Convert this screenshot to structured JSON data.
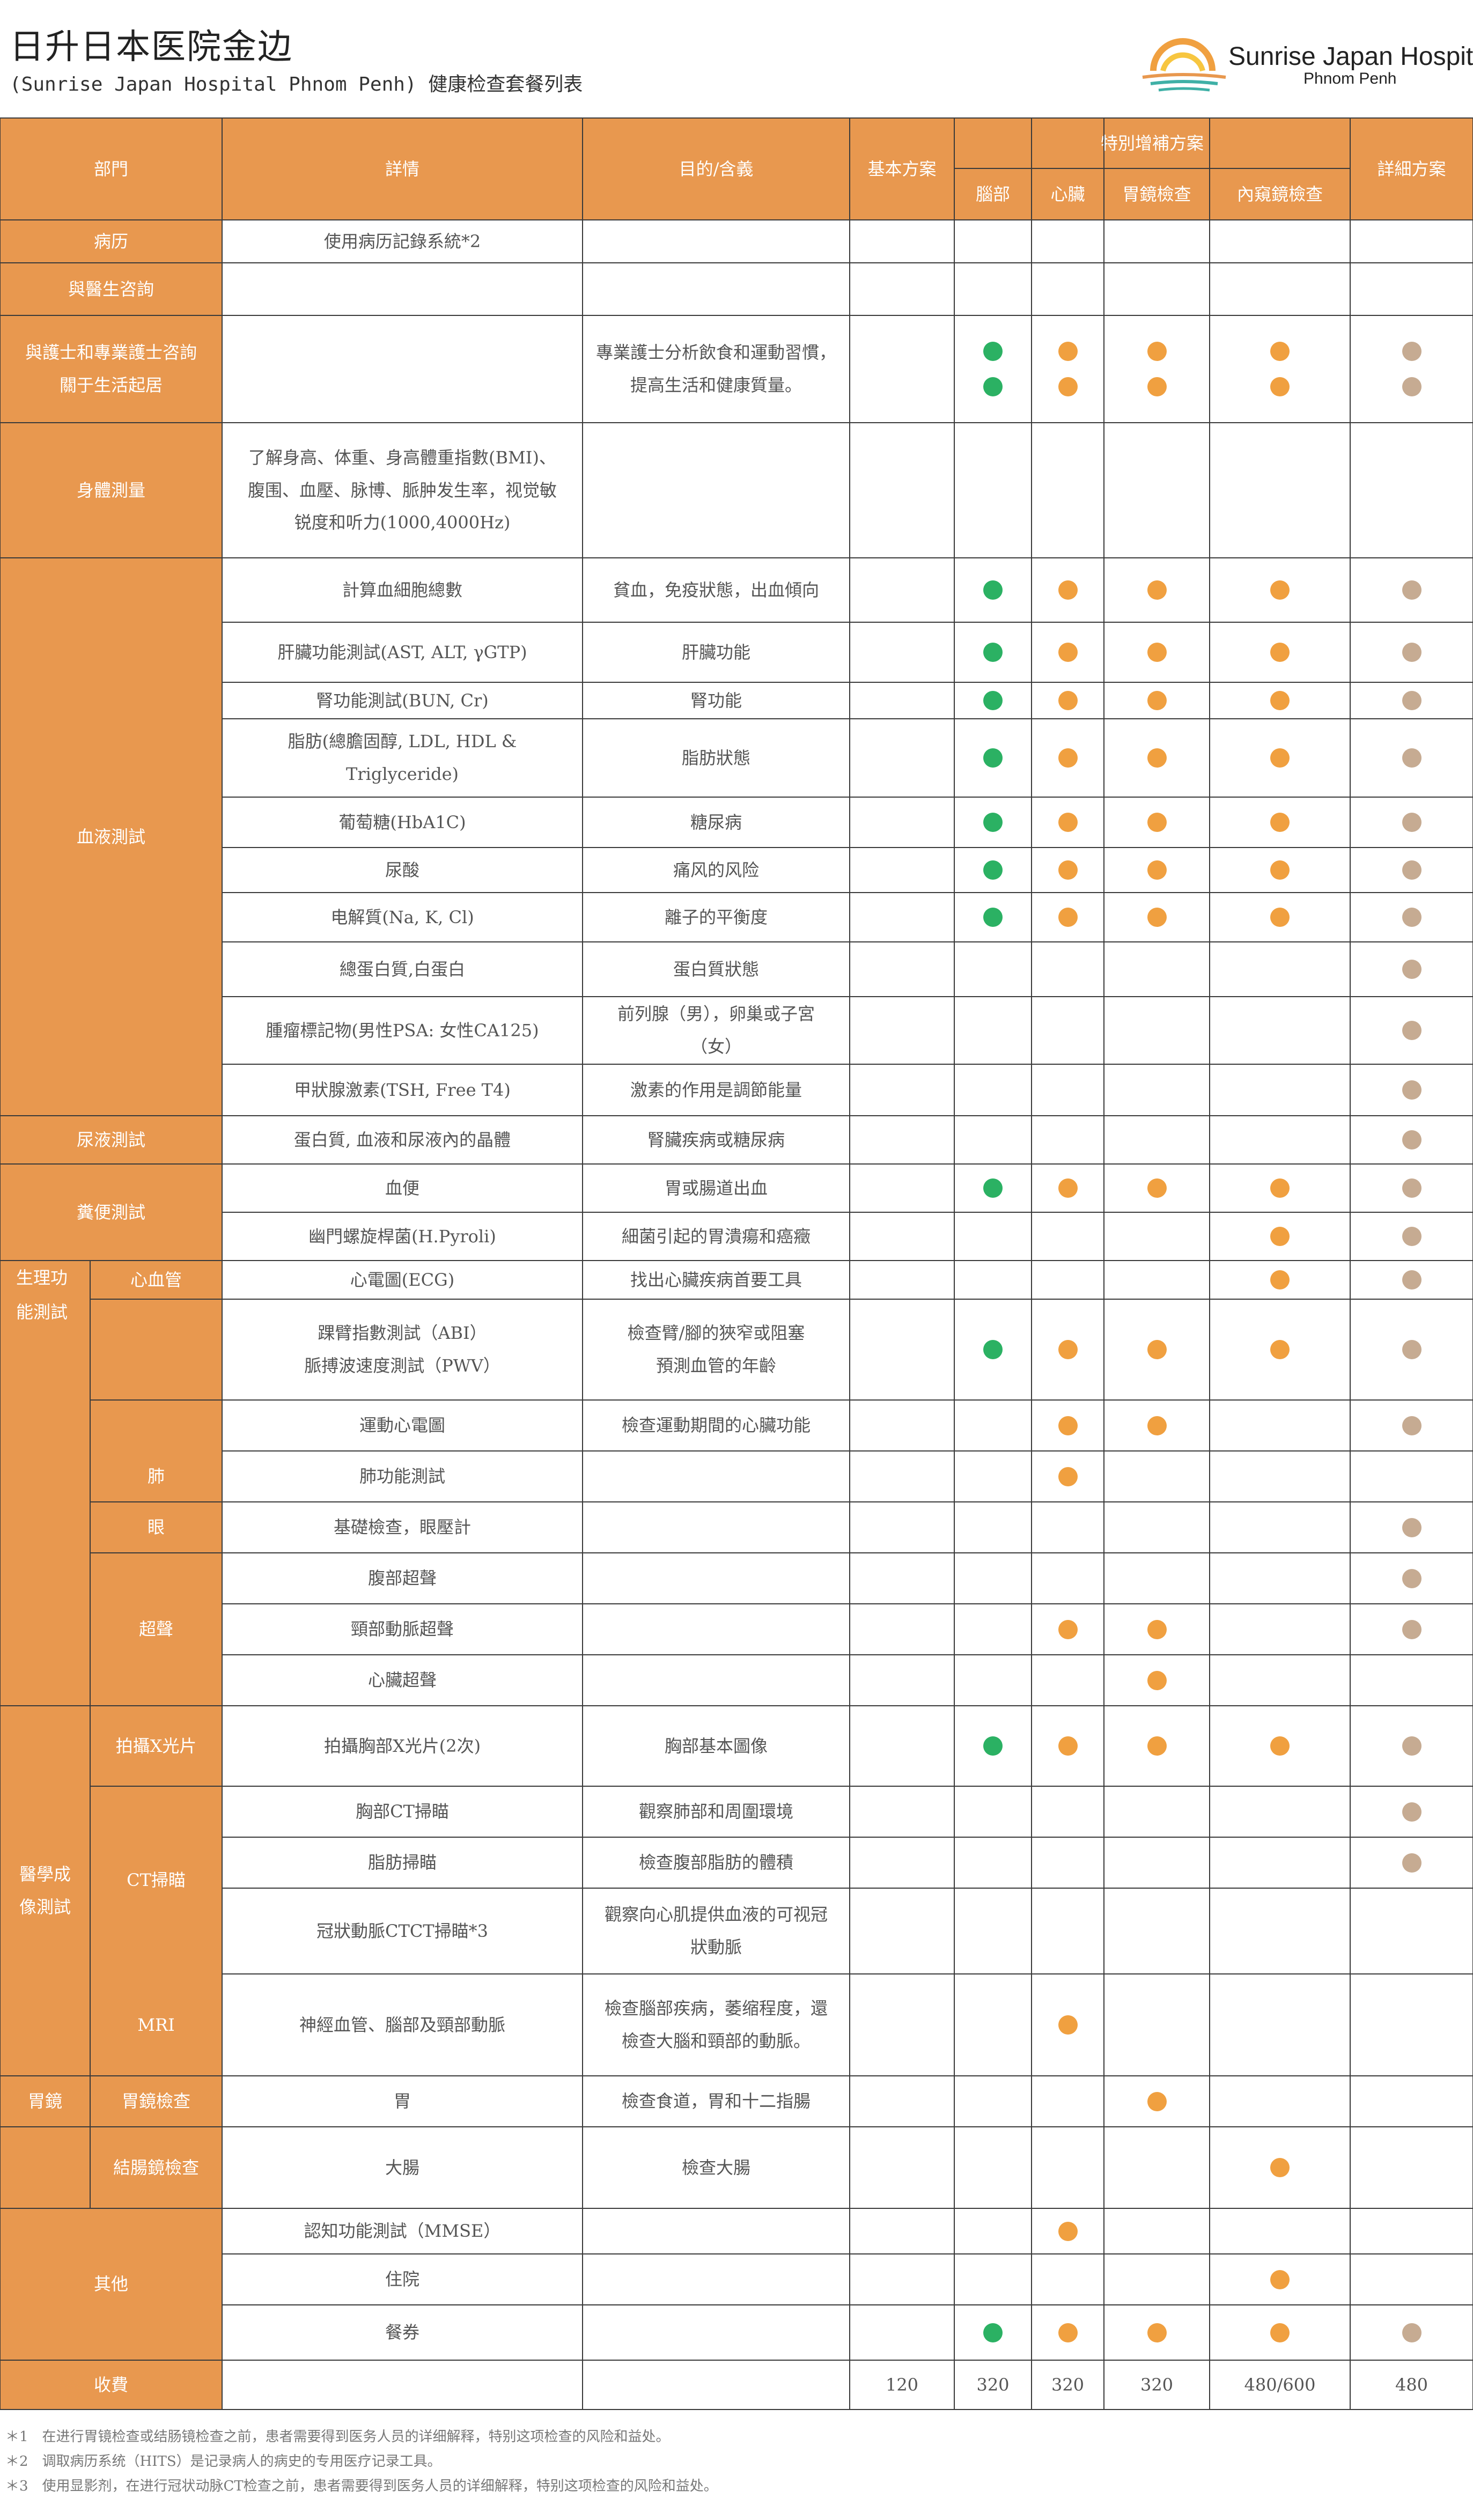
{
  "header": {
    "title": "日升日本医院金边",
    "subtitle": "(Sunrise Japan Hospital Phnom Penh) 健康检查套餐列表",
    "logo_text": "Sunrise Japan Hospital",
    "logo_sub": "Phnom Penh"
  },
  "table": {
    "headers": {
      "dept": "部門",
      "detail": "詳情",
      "purpose": "目的/含義",
      "basic": "基本方案",
      "special": "特別增補方案",
      "brain": "腦部",
      "heart": "心臟",
      "gastro": "胃鏡檢查",
      "endo": "內窺鏡檢查",
      "full": "詳細方案"
    },
    "depts": {
      "medical_record": "病历",
      "doctor": "與醫生咨詢",
      "nurse1": "與護士和專業護士咨詢",
      "nurse2": "關于生活起居",
      "body": "身體測量",
      "blood": "血液測試",
      "urine": "尿液測試",
      "stool": "糞便測試",
      "physio1": "生理功",
      "physio2": "能測試",
      "cardio": "心血管",
      "lung": "肺",
      "eye": "眼",
      "ultrasound": "超聲",
      "imaging1": "醫學成",
      "imaging2": "像測試",
      "xray": "拍攝X光片",
      "ct": "CT掃瞄",
      "mri": "MRI",
      "stomach": "胃鏡",
      "stomach_sub": "胃鏡檢查",
      "colon": "結腸鏡檢查",
      "other": "其他",
      "fee": "收費"
    },
    "rows": [
      {
        "detail": "使用病历記錄系統*2",
        "purpose": ""
      },
      {
        "detail": "",
        "purpose": ""
      },
      {
        "detail": "",
        "purpose": "專業護士分析飲食和運動習慣，\n提高生活和健康質量。"
      },
      {
        "detail": "了解身高、体重、身高體重指數(BMI)、\n腹围、血壓、脉博、脈肿发生率，视觉敏\n锐度和听力(1000,4000Hz)",
        "purpose": ""
      },
      {
        "detail": "計算血細胞總數",
        "purpose": "貧血，免疫狀態，出血傾向"
      },
      {
        "detail": "肝臟功能測試(AST, ALT, γGTP)",
        "purpose": "肝臟功能"
      },
      {
        "detail": "腎功能測試(BUN, Cr)",
        "purpose": "腎功能"
      },
      {
        "detail": "脂肪(總膽固醇, LDL, HDL & Triglyceride)",
        "purpose": "脂肪狀態"
      },
      {
        "detail": "葡萄糖(HbA1C)",
        "purpose": "糖尿病"
      },
      {
        "detail": "尿酸",
        "purpose": "痛风的风险"
      },
      {
        "detail": "电解質(Na, K, Cl)",
        "purpose": "離子的平衡度"
      },
      {
        "detail": "總蛋白質,白蛋白",
        "purpose": "蛋白質狀態"
      },
      {
        "detail": "腫瘤標記物(男性PSA: 女性CA125)",
        "purpose": "前列腺（男），卵巢或子宮\n（女）"
      },
      {
        "detail": "甲狀腺激素(TSH, Free T4)",
        "purpose": "激素的作用是調節能量"
      },
      {
        "detail": "蛋白質, 血液和尿液內的晶體",
        "purpose": "腎臟疾病或糖尿病"
      },
      {
        "detail": "血便",
        "purpose": "胃或腸道出血"
      },
      {
        "detail": "幽門螺旋桿菌(H.Pyroli)",
        "purpose": "細菌引起的胃潰瘍和癌癥"
      },
      {
        "detail": "心電圖(ECG)",
        "purpose": "找出心臟疾病首要工具"
      },
      {
        "detail": "踝臂指數測試（ABI）\n脈搏波速度測試（PWV）",
        "purpose": "檢查臂/腳的狹窄或阻塞\n預測血管的年齡"
      },
      {
        "detail": "運動心電圖",
        "purpose": "檢查運動期間的心臟功能"
      },
      {
        "detail": "肺功能測試",
        "purpose": ""
      },
      {
        "detail": "基礎檢查，眼壓計",
        "purpose": ""
      },
      {
        "detail": "腹部超聲",
        "purpose": ""
      },
      {
        "detail": "頸部動脈超聲",
        "purpose": ""
      },
      {
        "detail": "心臟超聲",
        "purpose": ""
      },
      {
        "detail": "拍攝胸部X光片(2次)",
        "purpose": "胸部基本圖像"
      },
      {
        "detail": "胸部CT掃瞄",
        "purpose": "觀察肺部和周圍環境"
      },
      {
        "detail": "脂肪掃瞄",
        "purpose": "檢查腹部脂肪的體積"
      },
      {
        "detail": "冠狀動脈CTCT掃瞄*3",
        "purpose": "觀察向心肌提供血液的可视冠\n狀動脈"
      },
      {
        "detail": "神經血管、腦部及頸部動脈",
        "purpose": "檢查腦部疾病，萎缩程度，還\n檢查大腦和頸部的動脈。"
      },
      {
        "detail": "胃",
        "purpose": "檢查食道，胃和十二指腸"
      },
      {
        "detail": "大腸",
        "purpose": "檢查大腸"
      },
      {
        "detail": "認知功能測試（MMSE）",
        "purpose": ""
      },
      {
        "detail": "住院",
        "purpose": ""
      },
      {
        "detail": "餐券",
        "purpose": ""
      }
    ],
    "fees": {
      "basic": "120",
      "brain": "320",
      "heart": "320",
      "gastro": "320",
      "endo": "480/600",
      "full": "480"
    }
  },
  "notes": [
    "＊1　在进行胃镜检查或结肠镜检查之前，患者需要得到医务人员的详细解释，特别这项检查的风险和益处。",
    "＊2　调取病历系统（HITS）是记录病人的病史的专用医疗记录工具。",
    "＊3　使用显影剂，在进行冠状动脉CT检查之前，患者需要得到医务人员的详细解释，特别这项检查的风险和益处。"
  ],
  "colors": {
    "orange": "#e8984f",
    "green": "#2bb163",
    "dot_orange": "#f0a040",
    "tan": "#c6ab92"
  }
}
